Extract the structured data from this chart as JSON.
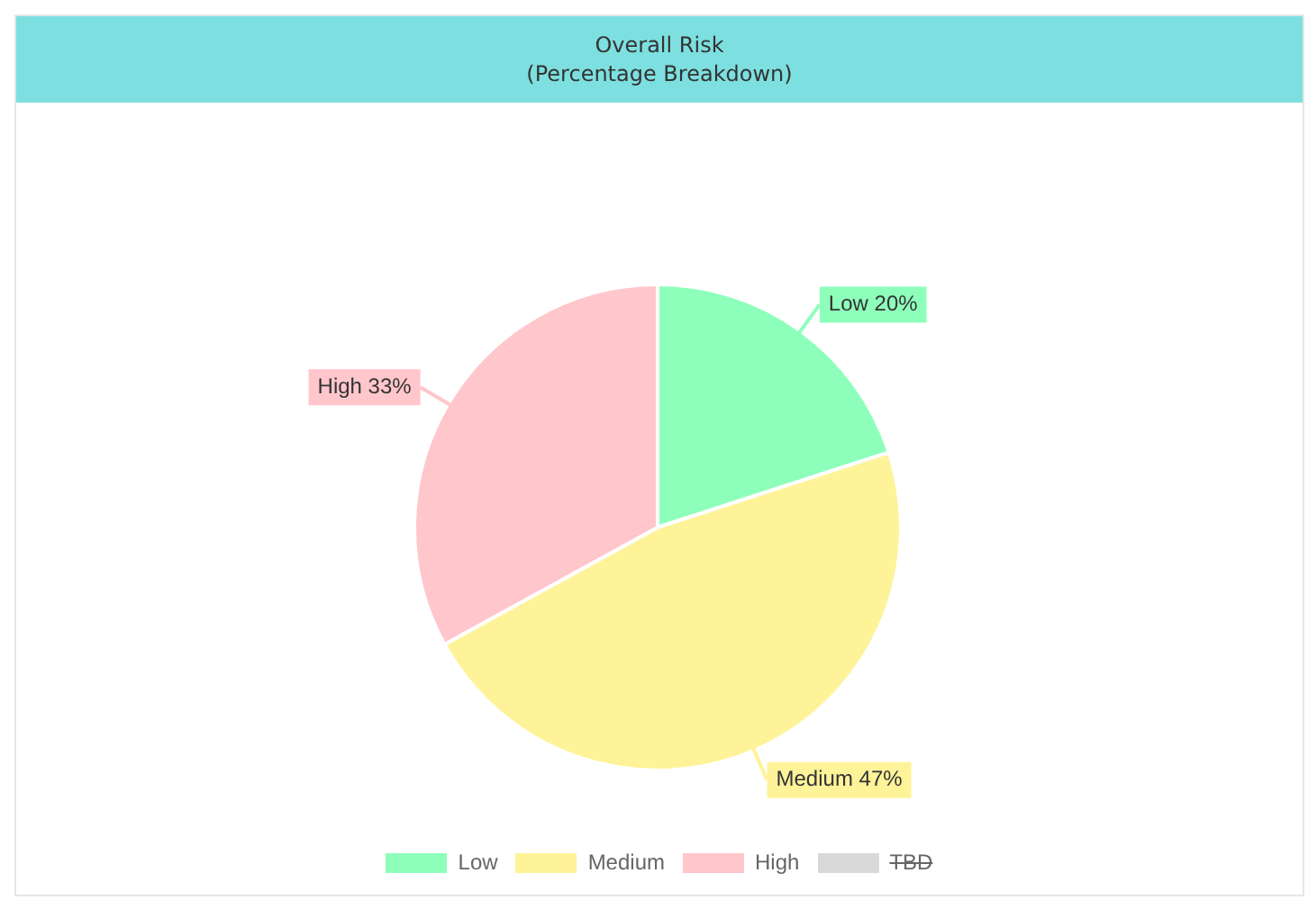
{
  "chart_data": {
    "type": "pie",
    "title": "Overall Risk",
    "subtitle": "(Percentage Breakdown)",
    "categories": [
      "Low",
      "Medium",
      "High",
      "TBD"
    ],
    "values": [
      20,
      47,
      33,
      null
    ],
    "colors": [
      "#8effbb",
      "#fff399",
      "#ffc6cc",
      "#d9d9d9"
    ],
    "value_labels": [
      "Low 20%",
      "Medium 47%",
      "High 33%",
      null
    ],
    "legend": "bottom"
  }
}
